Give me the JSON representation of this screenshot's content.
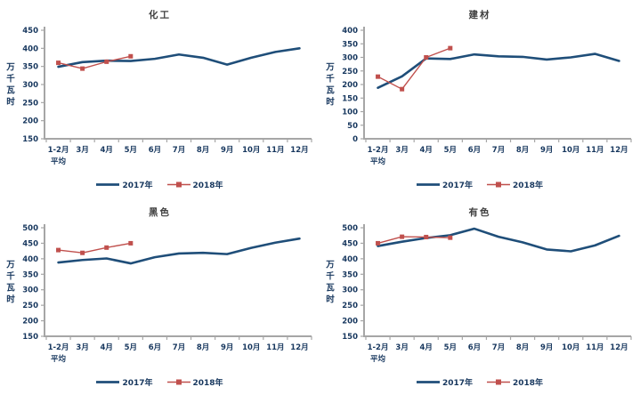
{
  "page": {
    "background": "#FFFFFF"
  },
  "style": {
    "axis_color": "#A6A6A6",
    "tick_text_color": "#17375E",
    "legend_text_color": "#17375E",
    "title_color": "#404040",
    "series_2017_color": "#1F4E79",
    "series_2018_color": "#C0504D"
  },
  "chart_data": [
    {
      "type": "line",
      "title": "化工",
      "ylabel": "万千瓦时",
      "ylim": [
        150,
        450
      ],
      "ytick_step": 50,
      "grid": false,
      "legend_position": "bottom",
      "categories": [
        "1-2月\n平均",
        "3月",
        "4月",
        "5月",
        "6月",
        "7月",
        "8月",
        "9月",
        "10月",
        "11月",
        "12月"
      ],
      "series": [
        {
          "name": "2017年",
          "color": "#1F4E79",
          "marker": "none",
          "values": [
            349,
            362,
            366,
            365,
            371,
            383,
            374,
            355,
            374,
            390,
            400
          ]
        },
        {
          "name": "2018年",
          "color": "#C0504D",
          "marker": "square",
          "values": [
            360,
            344,
            363,
            378,
            null,
            null,
            null,
            null,
            null,
            null,
            null
          ]
        }
      ]
    },
    {
      "type": "line",
      "title": "建材",
      "ylabel": "万千瓦时",
      "ylim": [
        0,
        400
      ],
      "ytick_step": 50,
      "grid": false,
      "legend_position": "bottom",
      "categories": [
        "1-2月\n平均",
        "3月",
        "4月",
        "5月",
        "6月",
        "7月",
        "8月",
        "9月",
        "10月",
        "11月",
        "12月"
      ],
      "series": [
        {
          "name": "2017年",
          "color": "#1F4E79",
          "marker": "none",
          "values": [
            188,
            230,
            296,
            294,
            311,
            304,
            302,
            292,
            300,
            313,
            287
          ]
        },
        {
          "name": "2018年",
          "color": "#C0504D",
          "marker": "square",
          "values": [
            229,
            183,
            300,
            334,
            null,
            null,
            null,
            null,
            null,
            null,
            null
          ]
        }
      ]
    },
    {
      "type": "line",
      "title": "黑色",
      "ylabel": "万千瓦时",
      "ylim": [
        150,
        500
      ],
      "ytick_step": 50,
      "grid": false,
      "legend_position": "bottom",
      "categories": [
        "1-2月\n平均",
        "3月",
        "4月",
        "5月",
        "6月",
        "7月",
        "8月",
        "9月",
        "10月",
        "11月",
        "12月"
      ],
      "series": [
        {
          "name": "2017年",
          "color": "#1F4E79",
          "marker": "none",
          "values": [
            388,
            396,
            401,
            385,
            405,
            417,
            419,
            415,
            435,
            452,
            465
          ]
        },
        {
          "name": "2018年",
          "color": "#C0504D",
          "marker": "square",
          "values": [
            428,
            419,
            436,
            450,
            null,
            null,
            null,
            null,
            null,
            null,
            null
          ]
        }
      ]
    },
    {
      "type": "line",
      "title": "有色",
      "ylabel": "万千瓦时",
      "ylim": [
        150,
        500
      ],
      "ytick_step": 50,
      "grid": false,
      "legend_position": "bottom",
      "categories": [
        "1-2月\n平均",
        "3月",
        "4月",
        "5月",
        "6月",
        "7月",
        "8月",
        "9月",
        "10月",
        "11月",
        "12月"
      ],
      "series": [
        {
          "name": "2017年",
          "color": "#1F4E79",
          "marker": "none",
          "values": [
            441,
            455,
            467,
            476,
            497,
            471,
            453,
            430,
            424,
            443,
            474
          ]
        },
        {
          "name": "2018年",
          "color": "#C0504D",
          "marker": "square",
          "values": [
            450,
            471,
            470,
            468,
            null,
            null,
            null,
            null,
            null,
            null,
            null
          ]
        }
      ]
    }
  ]
}
